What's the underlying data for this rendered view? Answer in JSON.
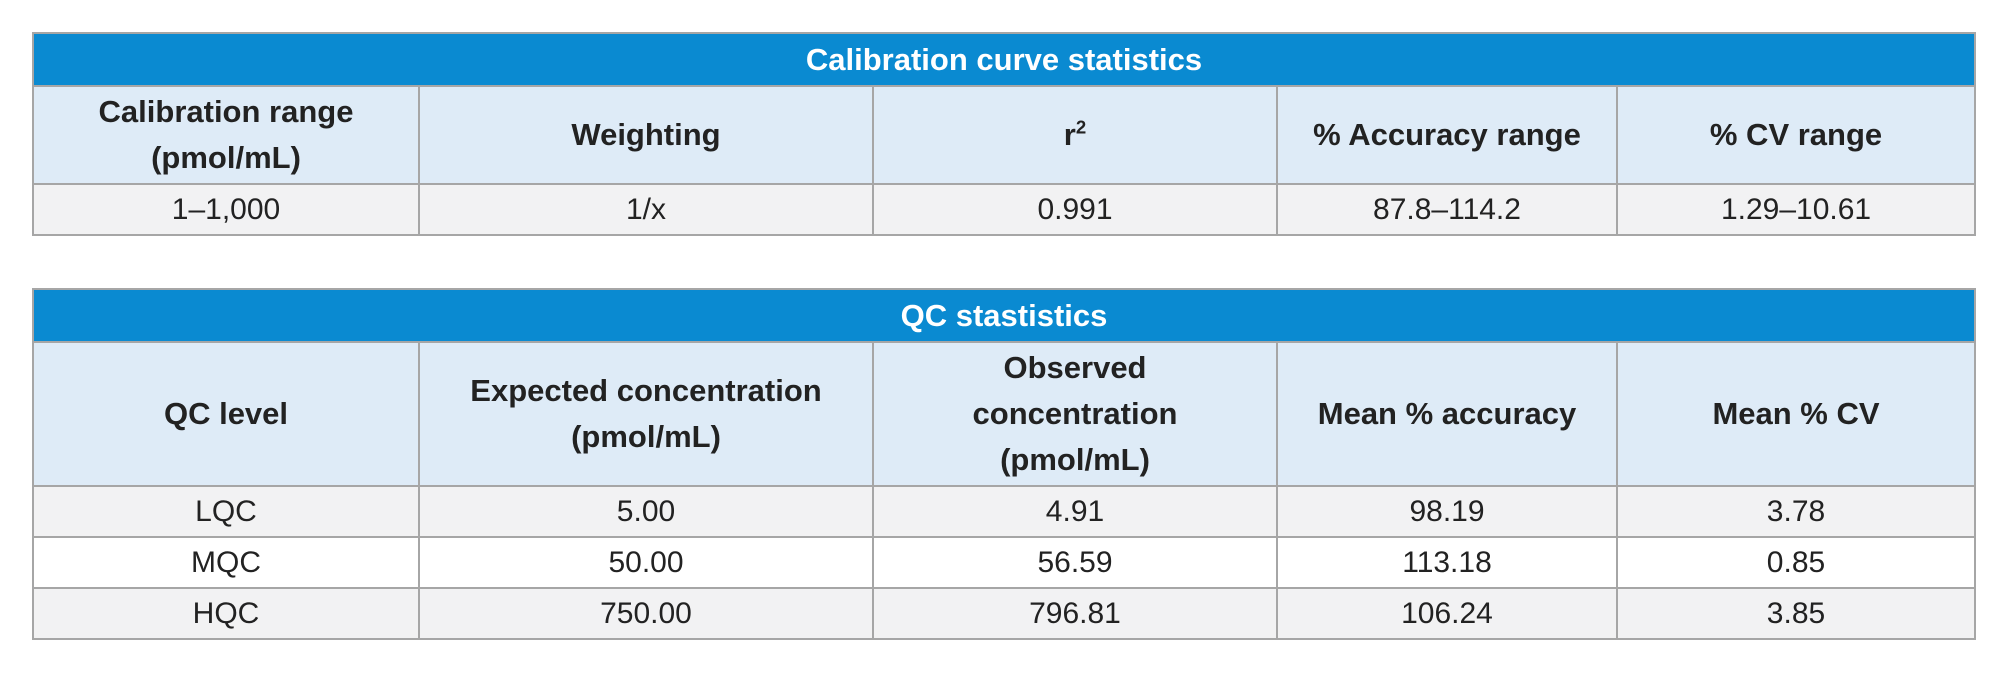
{
  "calibration": {
    "title": "Calibration curve statistics",
    "headers": {
      "range_line1": "Calibration range",
      "range_line2": "(pmol/mL)",
      "weighting": "Weighting",
      "r2_base": "r",
      "r2_sup": "2",
      "accuracy_range": "% Accuracy range",
      "cv_range": "% CV range"
    },
    "row": {
      "range": "1–1,000",
      "weighting": "1/x",
      "r2": "0.991",
      "accuracy_range": "87.8–114.2",
      "cv_range": "1.29–10.61"
    }
  },
  "qc": {
    "title": "QC stastistics",
    "headers": {
      "level": "QC level",
      "expected_line1": "Expected concentration",
      "expected_line2": "(pmol/mL)",
      "observed_line1": "Observed",
      "observed_line2": "concentration",
      "observed_line3": "(pmol/mL)",
      "mean_accuracy": "Mean % accuracy",
      "mean_cv": "Mean % CV"
    },
    "rows": [
      {
        "level": "LQC",
        "expected": "5.00",
        "observed": "4.91",
        "accuracy": "98.19",
        "cv": "3.78"
      },
      {
        "level": "MQC",
        "expected": "50.00",
        "observed": "56.59",
        "accuracy": "113.18",
        "cv": "0.85"
      },
      {
        "level": "HQC",
        "expected": "750.00",
        "observed": "796.81",
        "accuracy": "106.24",
        "cv": "3.85"
      }
    ]
  },
  "colors": {
    "title_bar": "#0a8ad1",
    "header_fill": "#deebf7",
    "row_shaded": "#f2f2f3",
    "border": "#a6a6a6"
  }
}
